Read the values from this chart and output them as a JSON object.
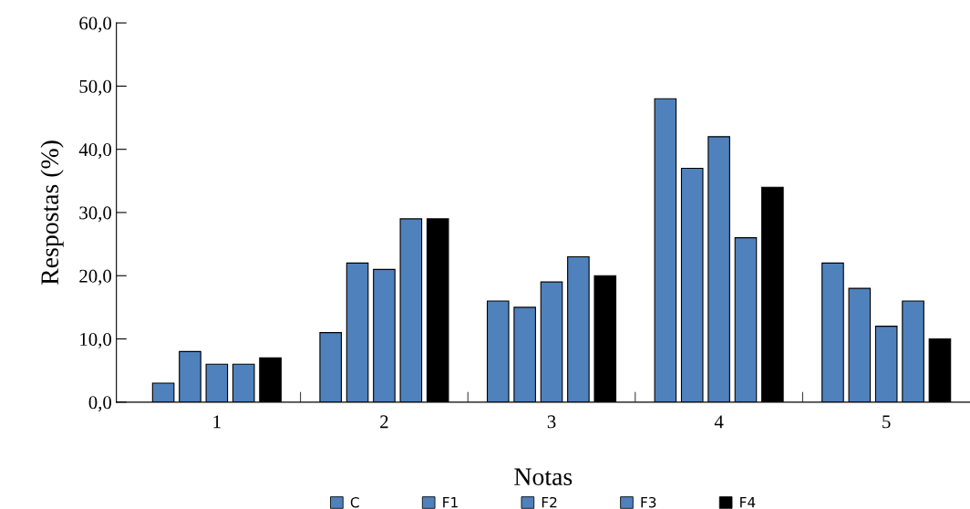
{
  "chart_data": {
    "type": "bar",
    "xlabel": "Notas",
    "ylabel": "Respostas (%)",
    "categories": [
      "1",
      "2",
      "3",
      "4",
      "5"
    ],
    "series": [
      {
        "name": "C",
        "color": "#4f81bd",
        "values": [
          3,
          11,
          16,
          48,
          22
        ]
      },
      {
        "name": "F1",
        "color": "#4f81bd",
        "values": [
          8,
          22,
          15,
          37,
          18
        ]
      },
      {
        "name": "F2",
        "color": "#4f81bd",
        "values": [
          6,
          21,
          19,
          42,
          12
        ]
      },
      {
        "name": "F3",
        "color": "#4f81bd",
        "values": [
          6,
          29,
          23,
          26,
          16
        ]
      },
      {
        "name": "F4",
        "color": "#000000",
        "values": [
          7,
          29,
          20,
          34,
          10
        ]
      }
    ],
    "ylim": [
      0,
      60
    ],
    "yticks": [
      {
        "value": 0,
        "label": "0,0"
      },
      {
        "value": 10,
        "label": "10,0"
      },
      {
        "value": 20,
        "label": "20,0"
      },
      {
        "value": 30,
        "label": "30,0"
      },
      {
        "value": 40,
        "label": "40,0"
      },
      {
        "value": 50,
        "label": "50,0"
      },
      {
        "value": 60,
        "label": "60,0"
      }
    ],
    "grid": false,
    "legend": "bottom"
  }
}
